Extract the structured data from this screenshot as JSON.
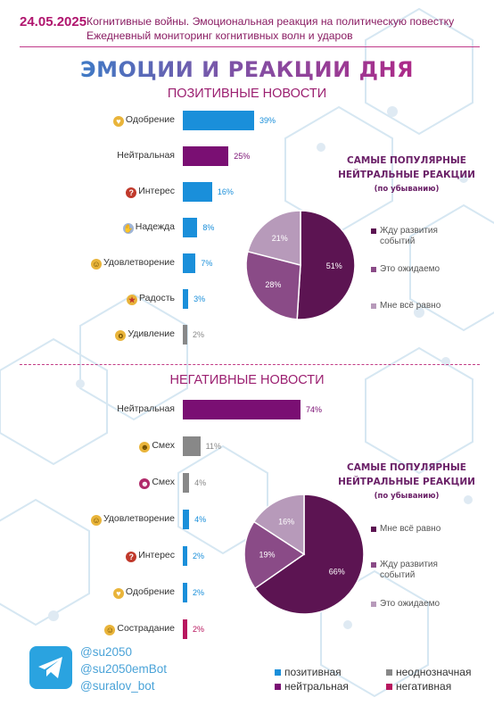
{
  "header": {
    "date": "24.05.2025",
    "subtitle_line1": "Когнитивные войны. Эмоциональная реакция на политическую повестку",
    "subtitle_line2": "Ежедневный мониторинг когнитивных волн и ударов"
  },
  "main_title": "ЭМОЦИИ И РЕАКЦИИ ДНЯ",
  "colors": {
    "positive": "#1a8fda",
    "neutral": "#7a0f73",
    "ambiguous": "#888888",
    "negative": "#b8175f",
    "pie_dark": "#5c1452",
    "pie_mid": "#8a4b87",
    "pie_light": "#b79aba"
  },
  "chart_data": [
    {
      "type": "bar",
      "title": "ПОЗИТИВНЫЕ НОВОСТИ",
      "categories": [
        "Одобрение",
        "Нейтральная",
        "Интерес",
        "Надежда",
        "Удовлетворение",
        "Радость",
        "Удивление"
      ],
      "values": [
        39,
        25,
        16,
        8,
        7,
        3,
        2
      ],
      "value_labels": [
        "39%",
        "25%",
        "16%",
        "8%",
        "7%",
        "3%",
        "2%"
      ],
      "groups": [
        "positive",
        "neutral",
        "positive",
        "positive",
        "positive",
        "positive",
        "ambiguous"
      ],
      "icons": [
        "heart-icon",
        "",
        "question-icon",
        "praying-hands-icon",
        "smile-icon",
        "star-eyes-icon",
        "surprised-face-icon"
      ]
    },
    {
      "type": "pie",
      "title": "САМЫЕ ПОПУЛЯРНЫЕ НЕЙТРАЛЬНЫЕ РЕАКЦИИ",
      "subtitle": "(по убыванию)",
      "categories": [
        "Жду развития событий",
        "Это ожидаемо",
        "Мне всё равно"
      ],
      "values": [
        51,
        28,
        21
      ],
      "value_labels": [
        "51%",
        "28%",
        "21%"
      ],
      "legend": "right"
    },
    {
      "type": "bar",
      "title": "НЕГАТИВНЫЕ НОВОСТИ",
      "categories": [
        "Нейтральная",
        "Смех",
        "Смех",
        "Удовлетворение",
        "Интерес",
        "Одобрение",
        "Сострадание"
      ],
      "values": [
        74,
        11,
        4,
        4,
        2,
        2,
        2
      ],
      "value_labels": [
        "74%",
        "11%",
        "4%",
        "4%",
        "2%",
        "2%",
        "2%"
      ],
      "groups": [
        "neutral",
        "ambiguous",
        "ambiguous",
        "positive",
        "positive",
        "positive",
        "negative"
      ],
      "icons": [
        "",
        "grin-icon",
        "devil-icon",
        "smile-icon",
        "question-icon",
        "heart-icon",
        "pleading-face-icon"
      ]
    },
    {
      "type": "pie",
      "title": "САМЫЕ ПОПУЛЯРНЫЕ НЕЙТРАЛЬНЫЕ РЕАКЦИИ",
      "subtitle": "(по убыванию)",
      "categories": [
        "Мне всё равно",
        "Жду развития событий",
        "Это ожидаемо"
      ],
      "values": [
        66,
        19,
        16
      ],
      "value_labels": [
        "66%",
        "19%",
        "16%"
      ],
      "legend": "right"
    }
  ],
  "footer": {
    "handles": [
      "@su2050",
      "@su2050emBot",
      "@suralov_bot"
    ],
    "legend": [
      {
        "label": "позитивная",
        "group": "positive"
      },
      {
        "label": "неоднозначная",
        "group": "ambiguous"
      },
      {
        "label": "нейтральная",
        "group": "neutral"
      },
      {
        "label": "негативная",
        "group": "negative"
      }
    ]
  }
}
